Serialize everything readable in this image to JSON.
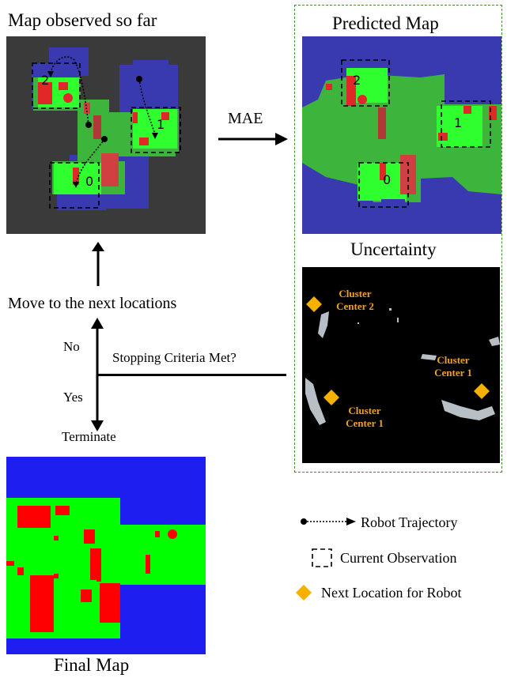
{
  "titles": {
    "observed": "Map observed so far",
    "predicted": "Predicted Map",
    "uncertainty": "Uncertainty",
    "final": "Final Map"
  },
  "arrows": {
    "mae": "MAE",
    "move_next": "Move to the next locations",
    "no": "No",
    "yes": "Yes",
    "stopping": "Stopping Criteria Met?",
    "terminate": "Terminate"
  },
  "observation_indices": [
    "2",
    "1",
    "0"
  ],
  "clusters": [
    {
      "line1": "Cluster",
      "line2": "Center 2"
    },
    {
      "line1": "Cluster",
      "line2": "Center 1"
    },
    {
      "line1": "Cluster",
      "line2": "Center 1"
    }
  ],
  "legend": {
    "trajectory": "Robot Trajectory",
    "observation": "Current Observation",
    "next_location": "Next Location for Robot"
  },
  "colors": {
    "floor": "#3db53d",
    "obstacle": "#e02828",
    "unknown": "#3a3ab0",
    "observed_bg": "#3a3a3a",
    "bright_green": "#2fff2f",
    "cluster_orange": "#f5b000",
    "frame_green": "#4a8a3c"
  }
}
